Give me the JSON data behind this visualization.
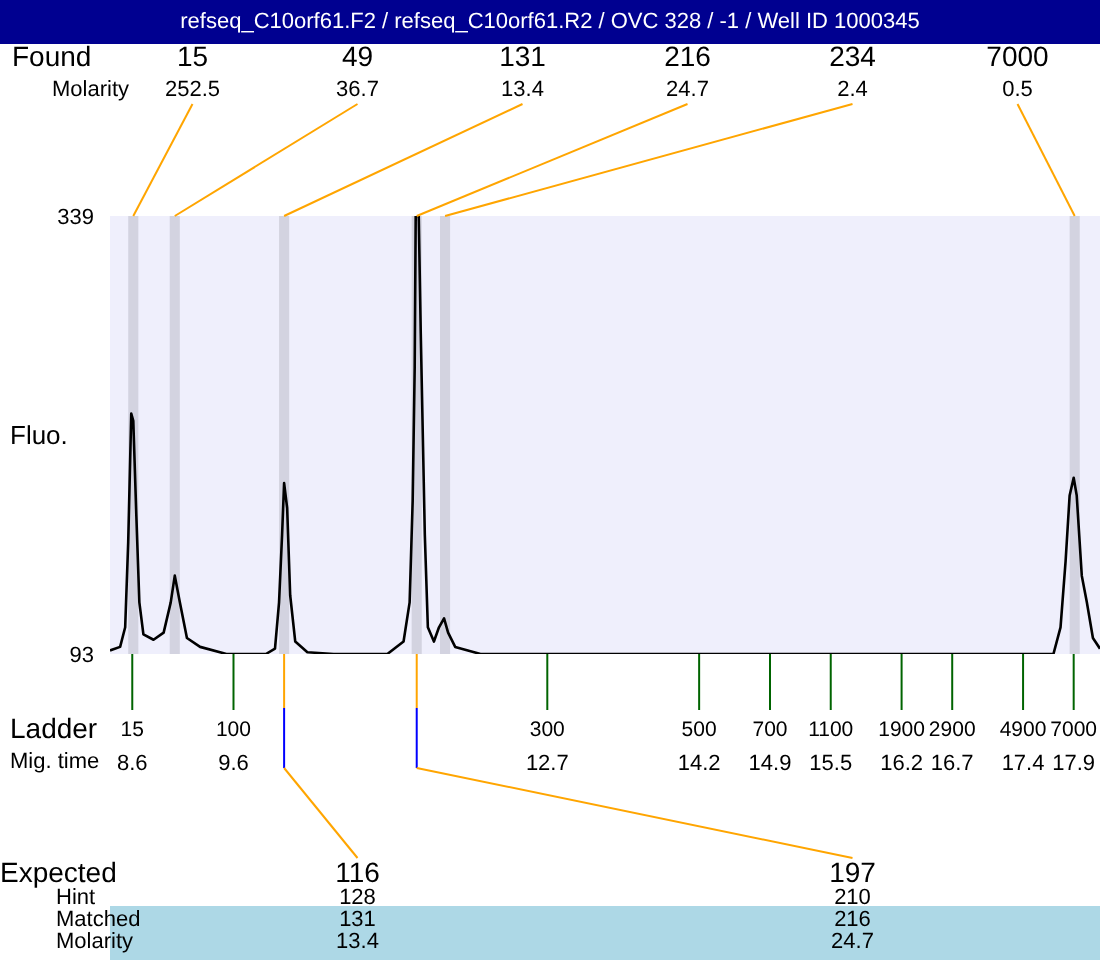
{
  "chart_data": {
    "type": "line",
    "title": "refseq_C10orf61.F2 / refseq_C10orf61.R2 / OVC 328 / -1  / Well ID 1000345",
    "xlabel": "Mig. time",
    "ylabel": "Fluo.",
    "xlim": [
      8.38,
      18.16
    ],
    "ylim": [
      93,
      339
    ],
    "yticks": [
      93,
      339
    ],
    "xticks": [
      8.6,
      9.6,
      12.7,
      14.2,
      14.9,
      15.5,
      16.2,
      16.7,
      17.4,
      17.9
    ],
    "legend": false,
    "marker": "none",
    "series": [
      {
        "color": "#000000",
        "x": [
          8.38,
          8.48,
          8.53,
          8.56,
          8.59,
          8.61,
          8.64,
          8.67,
          8.71,
          8.81,
          8.91,
          8.98,
          9.02,
          9.07,
          9.14,
          9.27,
          9.53,
          9.92,
          10.01,
          10.05,
          10.08,
          10.1,
          10.13,
          10.16,
          10.21,
          10.33,
          10.59,
          11.12,
          11.28,
          11.34,
          11.37,
          11.39,
          11.4,
          11.43,
          11.45,
          11.49,
          11.52,
          11.58,
          11.63,
          11.68,
          11.72,
          11.79,
          12.04,
          12.57,
          15.27,
          17.24,
          17.7,
          17.77,
          17.82,
          17.86,
          17.9,
          17.93,
          17.98,
          18.03,
          18.09,
          18.16
        ],
        "values": [
          95,
          97,
          108,
          156,
          228,
          224,
          171,
          122,
          104,
          101,
          105,
          122,
          137,
          122,
          102,
          97,
          93,
          93,
          96,
          122,
          160,
          189,
          175,
          126,
          100,
          94,
          93,
          93,
          100,
          122,
          179,
          254,
          339,
          339,
          273,
          160,
          108,
          100,
          108,
          113,
          105,
          97,
          93,
          93,
          93,
          93,
          93,
          108,
          145,
          182,
          192,
          182,
          137,
          122,
          102,
          96
        ]
      }
    ],
    "bands": [
      {
        "axis": "x",
        "from": 8.56,
        "to": 8.66,
        "color": "#d3d3e0"
      },
      {
        "axis": "x",
        "from": 8.97,
        "to": 9.07,
        "color": "#d3d3e0"
      },
      {
        "axis": "x",
        "from": 10.05,
        "to": 10.15,
        "color": "#d3d3e0"
      },
      {
        "axis": "x",
        "from": 11.36,
        "to": 11.46,
        "color": "#d3d3e0"
      },
      {
        "axis": "x",
        "from": 11.64,
        "to": 11.74,
        "color": "#d3d3e0"
      },
      {
        "axis": "x",
        "from": 17.86,
        "to": 17.96,
        "color": "#d3d3e0"
      }
    ],
    "annotations": [
      "Found",
      "15",
      "49",
      "131",
      "216",
      "234",
      "7000",
      "Molarity",
      "252.5",
      "36.7",
      "13.4",
      "24.7",
      "2.4",
      "0.5",
      "Ladder",
      "15",
      "100",
      "300",
      "500",
      "700",
      "1100",
      "1900",
      "2900",
      "4900",
      "7000",
      "Expected",
      "116",
      "197",
      "Hint",
      "128",
      "210",
      "Matched",
      "131",
      "216",
      "Molarity",
      "13.4",
      "24.7"
    ]
  }
}
